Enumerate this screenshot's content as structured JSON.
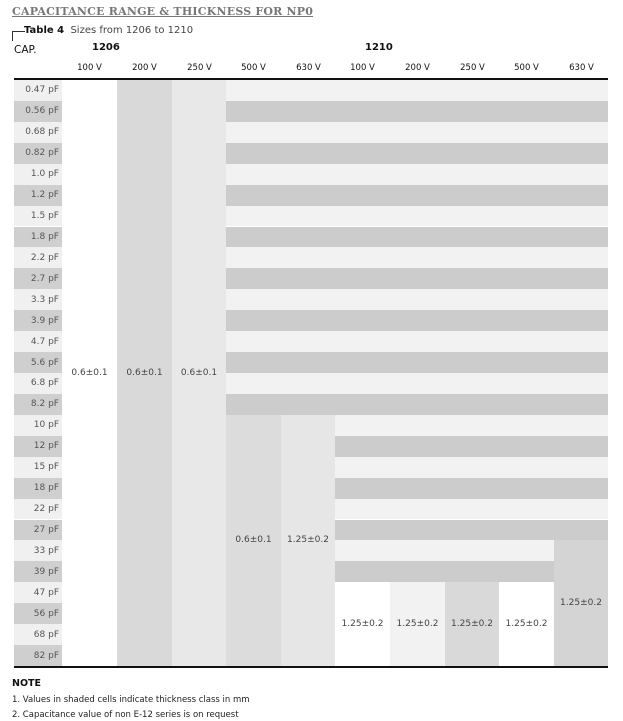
{
  "title": "CAPACITANCE RANGE & THICKNESS FOR NP0",
  "caption": {
    "table_no": "Table 4",
    "text": "Sizes from 1206 to 1210"
  },
  "header": {
    "cap": "CAP.",
    "sizes": [
      {
        "name": "1206",
        "col": 0
      },
      {
        "name": "1210",
        "col": 5
      }
    ],
    "voltages": [
      "100 V",
      "200 V",
      "250 V",
      "500 V",
      "630 V",
      "100 V",
      "200 V",
      "250 V",
      "500 V",
      "630 V"
    ]
  },
  "rows": [
    "0.47 pF",
    "0.56 pF",
    "0.68 pF",
    "0.82 pF",
    "1.0 pF",
    "1.2 pF",
    "1.5 pF",
    "1.8 pF",
    "2.2 pF",
    "2.7 pF",
    "3.3 pF",
    "3.9 pF",
    "4.7 pF",
    "5.6 pF",
    "6.8 pF",
    "8.2 pF",
    "10 pF",
    "12 pF",
    "15 pF",
    "18 pF",
    "22 pF",
    "27 pF",
    "33 pF",
    "39 pF",
    "47 pF",
    "56 pF",
    "68 pF",
    "82 pF"
  ],
  "blocks": [
    {
      "size": "1206",
      "voltage": "100 V",
      "from": "0.47 pF",
      "to": "82 pF",
      "value": "0.6±0.1"
    },
    {
      "size": "1206",
      "voltage": "200 V",
      "from": "0.47 pF",
      "to": "82 pF",
      "value": "0.6±0.1"
    },
    {
      "size": "1206",
      "voltage": "250 V",
      "from": "0.47 pF",
      "to": "82 pF",
      "value": "0.6±0.1"
    },
    {
      "size": "1206",
      "voltage": "500 V",
      "from": "10 pF",
      "to": "82 pF",
      "value": "0.6±0.1"
    },
    {
      "size": "1206",
      "voltage": "630 V",
      "from": "10 pF",
      "to": "82 pF",
      "value": "1.25±0.2"
    },
    {
      "size": "1210",
      "voltage": "100 V",
      "from": "47 pF",
      "to": "82 pF",
      "value": "1.25±0.2"
    },
    {
      "size": "1210",
      "voltage": "200 V",
      "from": "47 pF",
      "to": "82 pF",
      "value": "1.25±0.2"
    },
    {
      "size": "1210",
      "voltage": "250 V",
      "from": "47 pF",
      "to": "82 pF",
      "value": "1.25±0.2"
    },
    {
      "size": "1210",
      "voltage": "500 V",
      "from": "47 pF",
      "to": "82 pF",
      "value": "1.25±0.2"
    },
    {
      "size": "1210",
      "voltage": "630 V",
      "from": "33 pF",
      "to": "82 pF",
      "value": "1.25±0.2"
    }
  ],
  "note": {
    "heading": "NOTE",
    "items": [
      "1.  Values in shaded cells indicate thickness class in mm",
      "2.  Capacitance value of non E-12 series is on request"
    ]
  }
}
